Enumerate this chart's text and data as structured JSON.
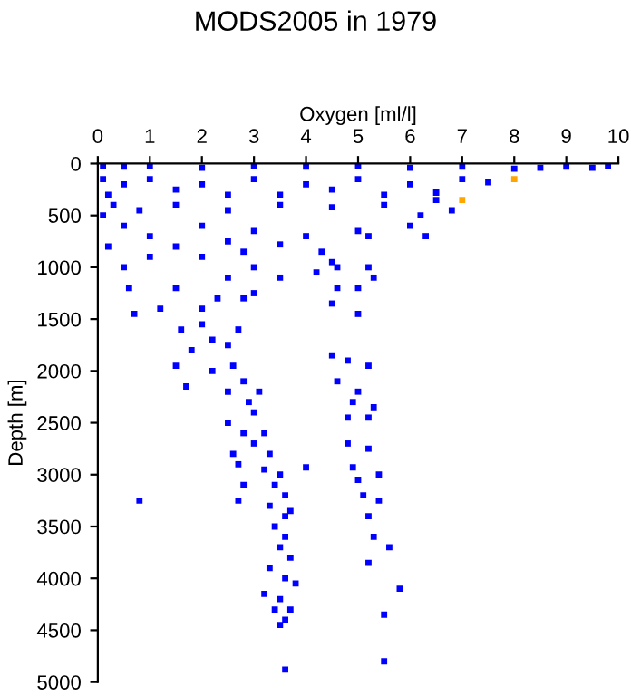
{
  "chart_data": {
    "type": "scatter",
    "title": "MODS2005 in 1979",
    "xlabel": "Oxygen [ml/l]",
    "ylabel": "Depth [m]",
    "xlim": [
      0,
      10
    ],
    "xticks": [
      0,
      1,
      2,
      3,
      4,
      5,
      6,
      7,
      8,
      9,
      10
    ],
    "ylim": [
      5000,
      0
    ],
    "yticks": [
      0,
      500,
      1000,
      1500,
      2000,
      2500,
      3000,
      3500,
      4000,
      4500,
      5000
    ],
    "grid": false,
    "legend": false,
    "marker": "square",
    "series": [
      {
        "color": "#0000ff",
        "x": [
          0.1,
          0.5,
          1,
          2,
          3,
          4,
          5,
          6,
          7,
          8,
          8.5,
          9,
          9.5,
          9.8,
          0.1,
          0.5,
          1,
          1.5,
          2,
          3,
          4,
          5,
          6,
          7,
          7.5,
          6.5,
          5.5,
          4.5,
          3.5,
          2.5,
          0.2,
          0.3,
          0.8,
          1.5,
          2.5,
          3.5,
          4.5,
          5.5,
          6.5,
          6.8,
          6.2,
          0.1,
          0.5,
          1,
          2,
          3,
          4,
          3.5,
          2.5,
          5,
          5.2,
          6,
          6.3,
          0.2,
          1.5,
          0.5,
          1,
          2,
          2.8,
          3,
          2.5,
          1.5,
          0.6,
          0.7,
          1.2,
          2,
          2.3,
          2.8,
          3.5,
          4.2,
          4.3,
          4.5,
          4.6,
          5.2,
          5.3,
          4.6,
          5.0,
          4.5,
          5.0,
          3,
          1.6,
          2,
          2.2,
          1.8,
          2.5,
          2.7,
          1.5,
          2.2,
          2.6,
          2.8,
          1.7,
          2.5,
          3.1,
          2.9,
          2.5,
          3.0,
          4.5,
          4.8,
          5.2,
          4.6,
          5.0,
          4.9,
          5.3,
          4.8,
          5.2,
          2.8,
          3.2,
          2.6,
          3.0,
          3.3,
          2.7,
          3.2,
          3.5,
          2.8,
          3.4,
          3.6,
          3.3,
          3.6,
          2.7,
          0.8,
          4.0,
          4.9,
          4.8,
          5.2,
          5.0,
          5.4,
          5.1,
          5.4,
          5.2,
          3.7,
          3.4,
          3.6,
          3.5,
          3.7,
          3.3,
          3.6,
          3.8,
          3.2,
          3.5,
          3.7,
          3.4,
          3.6,
          3.5,
          3.6,
          5.3,
          5.6,
          5.2,
          5.8,
          5.5,
          5.5
        ],
        "values": [
          20,
          30,
          20,
          40,
          20,
          30,
          20,
          40,
          30,
          50,
          40,
          30,
          40,
          20,
          150,
          200,
          150,
          250,
          200,
          150,
          200,
          150,
          200,
          150,
          180,
          280,
          300,
          250,
          300,
          300,
          300,
          400,
          450,
          400,
          450,
          400,
          420,
          400,
          350,
          450,
          500,
          500,
          600,
          700,
          600,
          650,
          700,
          780,
          750,
          650,
          700,
          600,
          700,
          800,
          800,
          1000,
          900,
          900,
          850,
          1000,
          1100,
          1200,
          1200,
          1450,
          1400,
          1400,
          1300,
          1300,
          1100,
          1050,
          850,
          950,
          1000,
          1000,
          1100,
          1200,
          1200,
          1350,
          1450,
          1250,
          1600,
          1550,
          1700,
          1800,
          1750,
          1600,
          1950,
          2000,
          1950,
          2100,
          2150,
          2200,
          2200,
          2300,
          2500,
          2400,
          1850,
          1900,
          1950,
          2100,
          2200,
          2300,
          2350,
          2450,
          2450,
          2600,
          2600,
          2800,
          2700,
          2800,
          2900,
          2950,
          3000,
          3100,
          3100,
          3200,
          3300,
          3400,
          3250,
          3250,
          2930,
          2930,
          2700,
          2750,
          3050,
          3000,
          3200,
          3250,
          3400,
          3350,
          3500,
          3600,
          3700,
          3800,
          3900,
          4000,
          4050,
          4150,
          4200,
          4300,
          4300,
          4400,
          4450,
          4880,
          3600,
          3700,
          3850,
          4100,
          4350,
          4800
        ]
      },
      {
        "color": "#ffa500",
        "x": [
          8.0,
          7.0
        ],
        "values": [
          150,
          350
        ]
      }
    ]
  }
}
